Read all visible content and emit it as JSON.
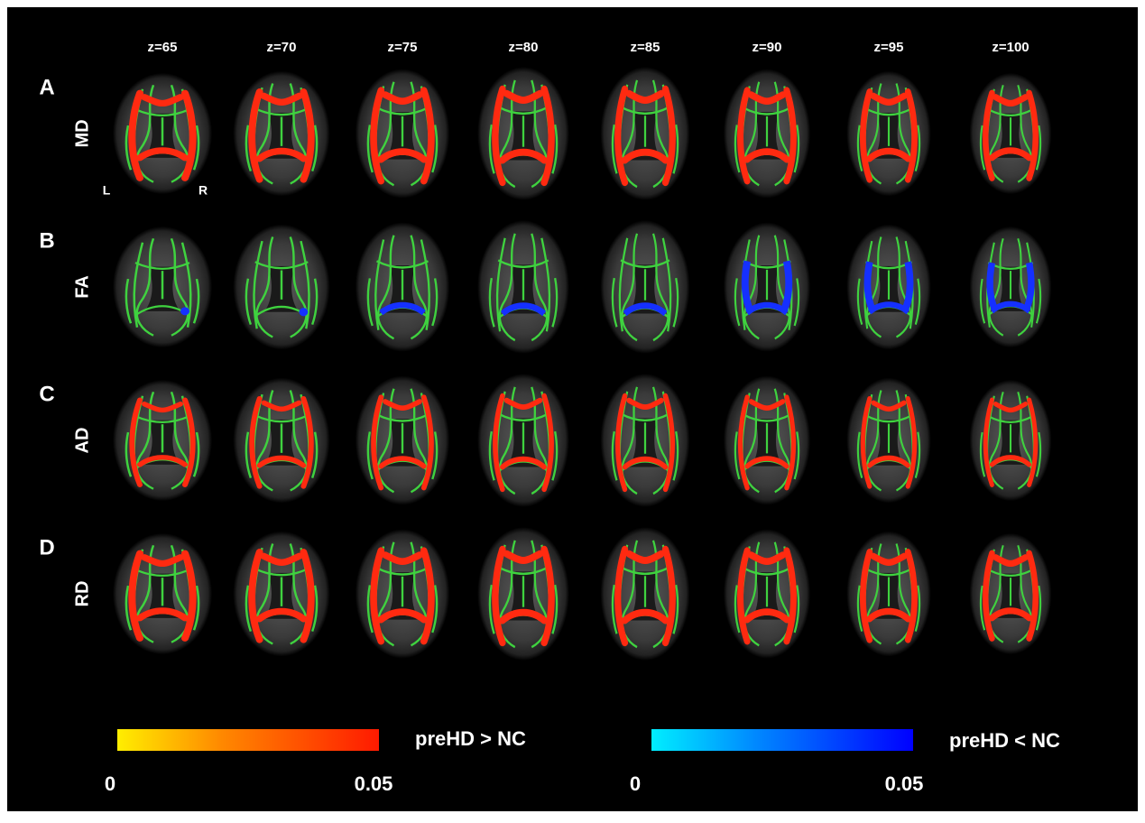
{
  "columns": [
    "z=65",
    "z=70",
    "z=75",
    "z=80",
    "z=85",
    "z=90",
    "z=95",
    "z=100"
  ],
  "rows": [
    {
      "letter": "A",
      "label": "MD"
    },
    {
      "letter": "B",
      "label": "FA"
    },
    {
      "letter": "C",
      "label": "AD"
    },
    {
      "letter": "D",
      "label": "RD"
    }
  ],
  "orientation": {
    "left": "L",
    "right": "R"
  },
  "legend": [
    {
      "label": "preHD > NC",
      "min": "0",
      "max": "0.05"
    },
    {
      "label": "preHD < NC",
      "min": "0",
      "max": "0.05"
    }
  ]
}
